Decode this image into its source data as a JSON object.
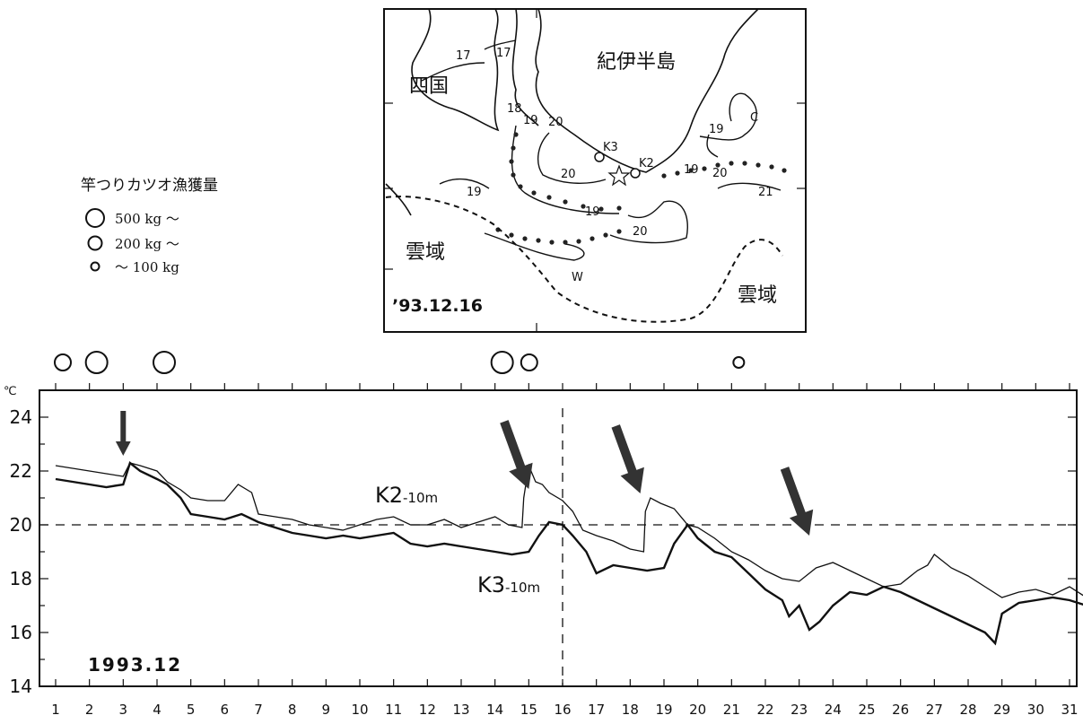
{
  "map": {
    "region_labels": {
      "kii": "紀伊半島",
      "shikoku": "四国",
      "cloud_left": "雲域",
      "cloud_right": "雲域",
      "warm": "W",
      "cold": "C"
    },
    "stations": [
      {
        "name": "K3"
      },
      {
        "name": "K2"
      }
    ],
    "isotherm_labels": [
      "17",
      "17",
      "18",
      "19",
      "20",
      "20",
      "19",
      "19",
      "20",
      "19",
      "20",
      "21"
    ],
    "date": "’93.12.16"
  },
  "legend": {
    "title": "竿つりカツオ漁獲量",
    "items": [
      {
        "label": "500 kg ～",
        "size": 3
      },
      {
        "label": "200 kg ～",
        "size": 2
      },
      {
        "label": "～ 100 kg",
        "size": 1
      }
    ]
  },
  "catch_markers": [
    {
      "day": 1,
      "size": 2
    },
    {
      "day": 2,
      "size": 3
    },
    {
      "day": 4,
      "size": 3
    },
    {
      "day": 14,
      "size": 3
    },
    {
      "day": 14.8,
      "size": 2
    },
    {
      "day": 21,
      "size": 1
    }
  ],
  "chart_data": {
    "type": "line",
    "period_label": "1993.12",
    "y_unit": "℃",
    "xlim": [
      1,
      31.5
    ],
    "ylim": [
      14,
      25
    ],
    "x_ticks": [
      "1",
      "2",
      "3",
      "4",
      "5",
      "6",
      "7",
      "8",
      "9",
      "10",
      "11",
      "12",
      "13",
      "14",
      "15",
      "16",
      "17",
      "18",
      "19",
      "20",
      "21",
      "22",
      "23",
      "24",
      "25",
      "26",
      "27",
      "28",
      "29",
      "30",
      "31"
    ],
    "y_ticks": [
      "14",
      "16",
      "18",
      "20",
      "22",
      "24"
    ],
    "reference_lines": {
      "y": 20,
      "x": 16
    },
    "arrows_days": [
      3,
      15,
      18.3,
      23.3
    ],
    "series": [
      {
        "name": "K2",
        "label_main": "K2",
        "label_sub": "-10m",
        "x": [
          1,
          2,
          2.5,
          3,
          3.2,
          3.5,
          4,
          4.3,
          4.7,
          5,
          5.5,
          6,
          6.4,
          6.8,
          7,
          7.5,
          8,
          8.5,
          9,
          9.5,
          10,
          10.5,
          11,
          11.5,
          12,
          12.5,
          13,
          13.5,
          14,
          14.4,
          14.8,
          14.85,
          15,
          15.2,
          15.4,
          15.6,
          16,
          16.3,
          16.6,
          17,
          17.5,
          18,
          18.4,
          18.45,
          18.6,
          18.9,
          19.3,
          19.7,
          20,
          20.5,
          21,
          21.5,
          22,
          22.5,
          23,
          23.5,
          24,
          24.5,
          25,
          25.5,
          26,
          26.5,
          26.8,
          27,
          27.5,
          28,
          28.5,
          29,
          29.5,
          30,
          30.5,
          31,
          31.5
        ],
        "y": [
          22.2,
          22.0,
          21.9,
          21.8,
          22.3,
          22.2,
          22.0,
          21.6,
          21.3,
          21.0,
          20.9,
          20.9,
          21.5,
          21.2,
          20.4,
          20.3,
          20.2,
          20.0,
          19.9,
          19.8,
          20.0,
          20.2,
          20.3,
          20.0,
          20.0,
          20.2,
          19.9,
          20.1,
          20.3,
          20.0,
          19.9,
          21.0,
          22.2,
          21.6,
          21.5,
          21.2,
          20.9,
          20.5,
          19.8,
          19.6,
          19.4,
          19.1,
          19.0,
          20.5,
          21.0,
          20.8,
          20.6,
          20.0,
          19.9,
          19.5,
          19.0,
          18.7,
          18.3,
          18.0,
          17.9,
          18.4,
          18.6,
          18.3,
          18.0,
          17.7,
          17.8,
          18.3,
          18.5,
          18.9,
          18.4,
          18.1,
          17.7,
          17.3,
          17.5,
          17.6,
          17.4,
          17.7,
          17.3
        ]
      },
      {
        "name": "K3",
        "label_main": "K3",
        "label_sub": "-10m",
        "x": [
          1,
          2,
          2.5,
          3,
          3.2,
          3.5,
          4,
          4.3,
          4.7,
          5,
          5.5,
          6,
          6.5,
          7,
          7.5,
          8,
          8.5,
          9,
          9.5,
          10,
          10.5,
          11,
          11.5,
          12,
          12.5,
          13,
          13.5,
          14,
          14.5,
          15,
          15.3,
          15.6,
          16,
          16.3,
          16.7,
          17,
          17.5,
          18,
          18.5,
          19,
          19.3,
          19.7,
          20,
          20.5,
          21,
          21.5,
          22,
          22.5,
          22.7,
          23,
          23.3,
          23.6,
          24,
          24.5,
          25,
          25.5,
          26,
          26.5,
          27,
          27.5,
          28,
          28.5,
          28.8,
          29,
          29.5,
          30,
          30.5,
          31,
          31.5
        ],
        "y": [
          21.7,
          21.5,
          21.4,
          21.5,
          22.3,
          22.0,
          21.7,
          21.5,
          21.0,
          20.4,
          20.3,
          20.2,
          20.4,
          20.1,
          19.9,
          19.7,
          19.6,
          19.5,
          19.6,
          19.5,
          19.6,
          19.7,
          19.3,
          19.2,
          19.3,
          19.2,
          19.1,
          19.0,
          18.9,
          19.0,
          19.6,
          20.1,
          20.0,
          19.6,
          19.0,
          18.2,
          18.5,
          18.4,
          18.3,
          18.4,
          19.3,
          20.0,
          19.5,
          19.0,
          18.8,
          18.2,
          17.6,
          17.2,
          16.6,
          17.0,
          16.1,
          16.4,
          17.0,
          17.5,
          17.4,
          17.7,
          17.5,
          17.2,
          16.9,
          16.6,
          16.3,
          16.0,
          15.6,
          16.7,
          17.1,
          17.2,
          17.3,
          17.2,
          17.0
        ]
      }
    ]
  }
}
